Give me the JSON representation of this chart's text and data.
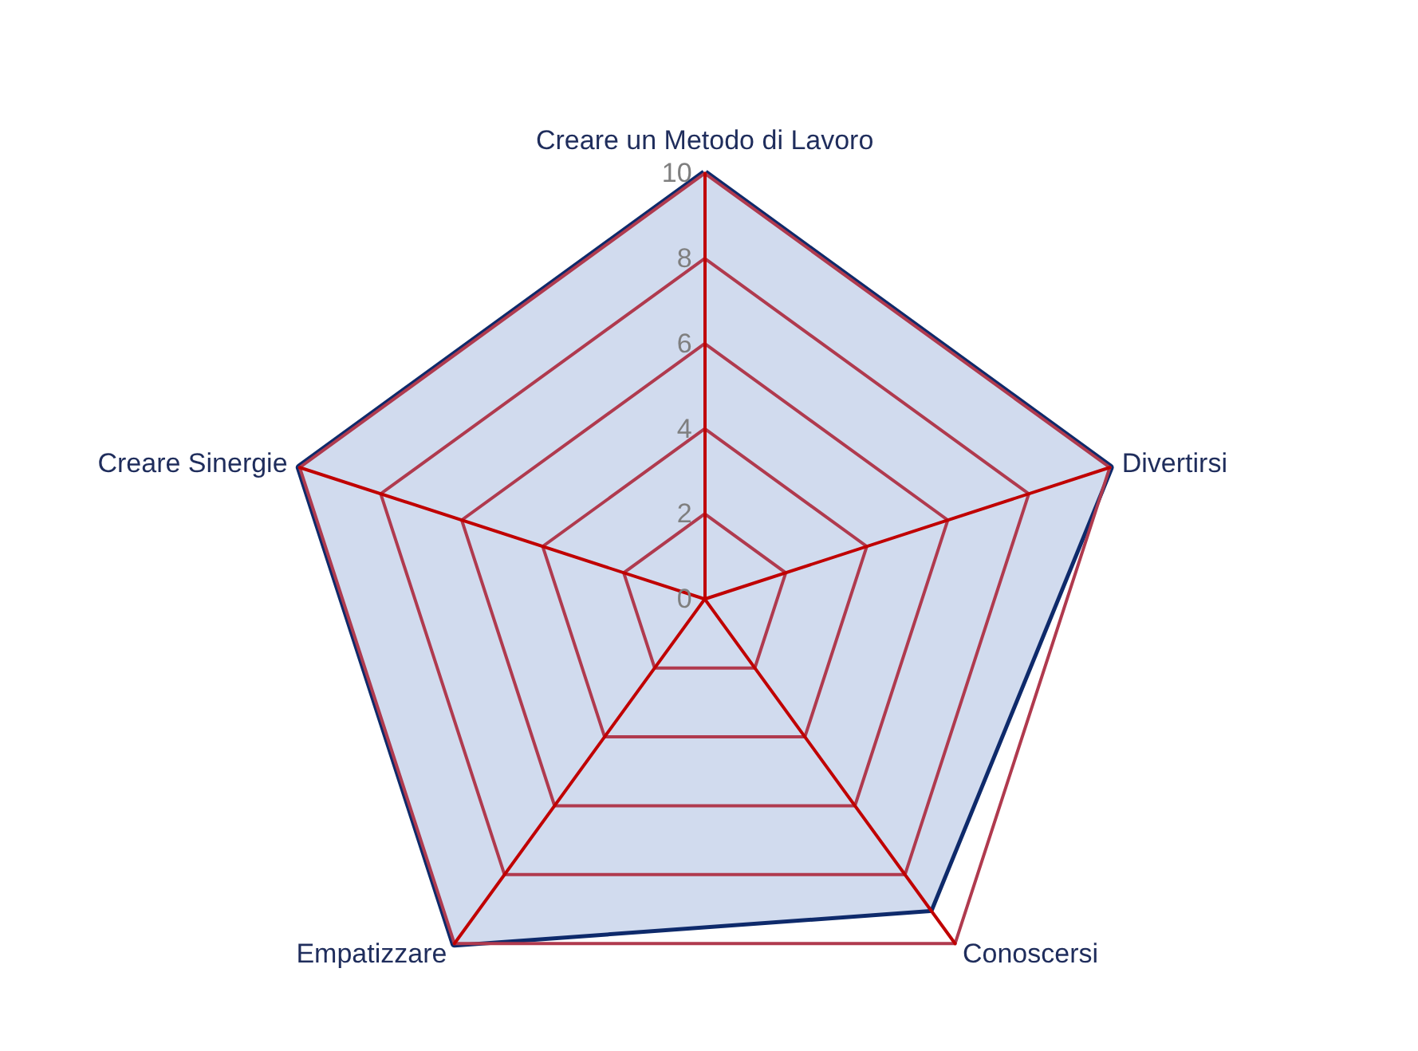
{
  "chart_data": {
    "type": "radar",
    "categories": [
      "Creare un Metodo di Lavoro",
      "Divertirsi",
      "Conoscersi",
      "Empatizzare",
      "Creare Sinergie"
    ],
    "series": [
      {
        "color": "#0e2a6b",
        "values": [
          10,
          10,
          9,
          10,
          10
        ]
      }
    ],
    "ylim": [
      0,
      10
    ],
    "yticks": [
      0,
      2,
      4,
      6,
      8,
      10
    ],
    "grid": true,
    "marker": "none"
  }
}
